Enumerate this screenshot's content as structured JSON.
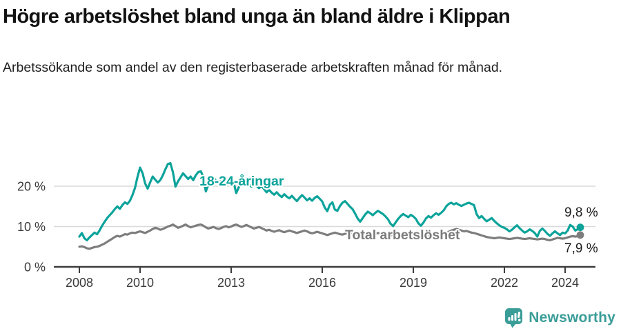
{
  "header": {
    "title": "Högre arbetslöshet bland unga än bland äldre i Klippan",
    "subtitle": "Arbetssökande som andel av den registerbaserade arbetskraften månad för månad."
  },
  "chart_data": {
    "type": "line",
    "unit": "%",
    "x_start_year": 2008,
    "x_step_months": 1,
    "x_end_approx": "2024-07",
    "x_tick_years": [
      2008,
      2010,
      2013,
      2016,
      2019,
      2022,
      2024
    ],
    "y_ticks": [
      0,
      10,
      20
    ],
    "y_tick_labels": [
      "0 %",
      "10 %",
      "20 %"
    ],
    "ylim": [
      0,
      27
    ],
    "grid": true,
    "legend_position": "inline-labels",
    "series": [
      {
        "name": "18-24-åringar",
        "color": "#0ca39a",
        "end_value": 9.8,
        "end_label": "9,8 %",
        "values": [
          7.5,
          8.4,
          7.1,
          6.6,
          7.3,
          7.9,
          8.5,
          8.1,
          9.0,
          10.2,
          11.2,
          12.1,
          12.8,
          13.5,
          14.3,
          15.0,
          14.4,
          15.3,
          16.0,
          15.6,
          16.4,
          17.8,
          19.6,
          22.3,
          24.6,
          23.2,
          20.7,
          19.4,
          21.0,
          22.4,
          21.6,
          20.9,
          21.5,
          22.7,
          24.2,
          25.5,
          25.7,
          23.4,
          19.9,
          21.2,
          22.2,
          23.2,
          22.5,
          21.8,
          22.4,
          21.5,
          22.7,
          23.5,
          23.7,
          22.3,
          18.7,
          20.4,
          21.3,
          22.1,
          21.4,
          20.8,
          21.3,
          20.5,
          21.1,
          21.7,
          22.0,
          20.9,
          18.3,
          19.7,
          21.0,
          21.8,
          21.1,
          20.4,
          19.9,
          20.7,
          20.1,
          19.5,
          20.0,
          19.3,
          18.5,
          19.1,
          18.4,
          17.9,
          18.5,
          17.8,
          17.3,
          18.0,
          17.4,
          17.0,
          17.6,
          16.9,
          16.3,
          17.1,
          17.8,
          17.2,
          16.5,
          17.0,
          16.4,
          17.1,
          17.5,
          16.9,
          16.2,
          14.7,
          13.8,
          15.4,
          16.0,
          14.2,
          13.9,
          15.1,
          15.9,
          16.3,
          15.6,
          14.9,
          14.3,
          13.2,
          12.0,
          11.2,
          12.1,
          13.0,
          13.7,
          13.3,
          12.8,
          13.4,
          13.9,
          13.5,
          13.1,
          12.5,
          11.8,
          10.7,
          10.1,
          11.0,
          11.9,
          12.6,
          13.1,
          12.7,
          12.3,
          12.9,
          12.5,
          11.9,
          10.8,
          10.2,
          11.0,
          12.0,
          12.6,
          12.2,
          12.8,
          13.3,
          12.9,
          13.4,
          14.0,
          15.0,
          15.6,
          15.9,
          15.5,
          15.8,
          15.4,
          15.1,
          15.4,
          15.7,
          15.9,
          15.6,
          15.3,
          13.1,
          12.1,
          12.6,
          11.9,
          11.3,
          11.7,
          12.1,
          11.4,
          10.8,
          10.3,
          9.9,
          9.7,
          9.3,
          8.8,
          9.2,
          9.8,
          10.3,
          9.6,
          9.0,
          8.5,
          8.8,
          9.3,
          8.9,
          8.4,
          7.5,
          8.9,
          9.5,
          8.9,
          8.2,
          7.7,
          8.3,
          8.8,
          8.3,
          7.9,
          8.5,
          8.3,
          9.0,
          10.4,
          10.0,
          9.0,
          9.3,
          9.8
        ]
      },
      {
        "name": "Total arbetslöshet",
        "color": "#7d7d7d",
        "end_value": 7.9,
        "end_label": "7,9 %",
        "values": [
          5.0,
          5.1,
          4.9,
          4.6,
          4.5,
          4.7,
          4.9,
          5.0,
          5.2,
          5.5,
          5.8,
          6.2,
          6.6,
          7.0,
          7.4,
          7.7,
          7.5,
          7.8,
          8.1,
          8.0,
          8.3,
          8.5,
          8.4,
          8.6,
          8.8,
          8.6,
          8.4,
          8.7,
          9.0,
          9.4,
          9.7,
          9.5,
          9.2,
          9.4,
          9.7,
          10.0,
          10.2,
          10.5,
          10.1,
          9.7,
          9.9,
          10.2,
          10.5,
          10.1,
          9.8,
          10.0,
          10.2,
          10.4,
          10.5,
          10.2,
          9.8,
          9.5,
          9.7,
          9.9,
          9.6,
          9.4,
          9.6,
          9.9,
          10.1,
          9.8,
          10.0,
          10.3,
          10.5,
          10.2,
          9.9,
          10.1,
          10.4,
          10.1,
          9.8,
          9.5,
          9.7,
          9.9,
          9.6,
          9.3,
          9.0,
          9.2,
          8.9,
          8.7,
          8.9,
          9.1,
          8.8,
          8.6,
          8.8,
          9.0,
          8.8,
          8.6,
          8.4,
          8.6,
          8.8,
          9.0,
          8.8,
          8.5,
          8.3,
          8.5,
          8.7,
          8.5,
          8.3,
          8.1,
          7.9,
          8.1,
          8.3,
          8.5,
          8.3,
          8.1,
          8.0,
          8.2,
          8.4,
          8.6,
          8.4,
          8.2,
          8.0,
          7.8,
          8.0,
          8.2,
          8.4,
          8.2,
          8.0,
          8.2,
          8.4,
          8.2,
          8.0,
          7.8,
          7.6,
          7.8,
          8.0,
          8.2,
          8.0,
          7.8,
          7.6,
          7.8,
          8.0,
          7.8,
          7.6,
          7.5,
          7.4,
          7.6,
          7.8,
          8.0,
          7.8,
          7.6,
          7.8,
          8.0,
          7.9,
          7.8,
          8.0,
          8.3,
          8.7,
          9.0,
          9.2,
          9.4,
          9.2,
          9.0,
          8.8,
          8.9,
          8.7,
          8.5,
          8.4,
          8.2,
          8.0,
          7.8,
          7.6,
          7.4,
          7.3,
          7.2,
          7.1,
          7.2,
          7.3,
          7.2,
          7.1,
          7.0,
          6.9,
          7.0,
          7.1,
          7.2,
          7.1,
          7.0,
          6.9,
          7.0,
          7.1,
          7.0,
          6.9,
          6.8,
          6.9,
          7.0,
          6.9,
          6.7,
          6.6,
          6.8,
          7.0,
          7.2,
          7.1,
          7.0,
          7.1,
          7.3,
          7.5,
          7.6,
          7.5,
          7.6,
          7.9
        ]
      }
    ],
    "colors": {
      "grid": "#dadada",
      "axis": "#3c3c3c",
      "accent_teal": "#0ca39a",
      "series_gray": "#7d7d7d"
    }
  },
  "footer": {
    "brand": "Newsworthy",
    "brand_color": "#3b9d98",
    "logo_icon": "bar-chart-speech-bubble-icon"
  }
}
